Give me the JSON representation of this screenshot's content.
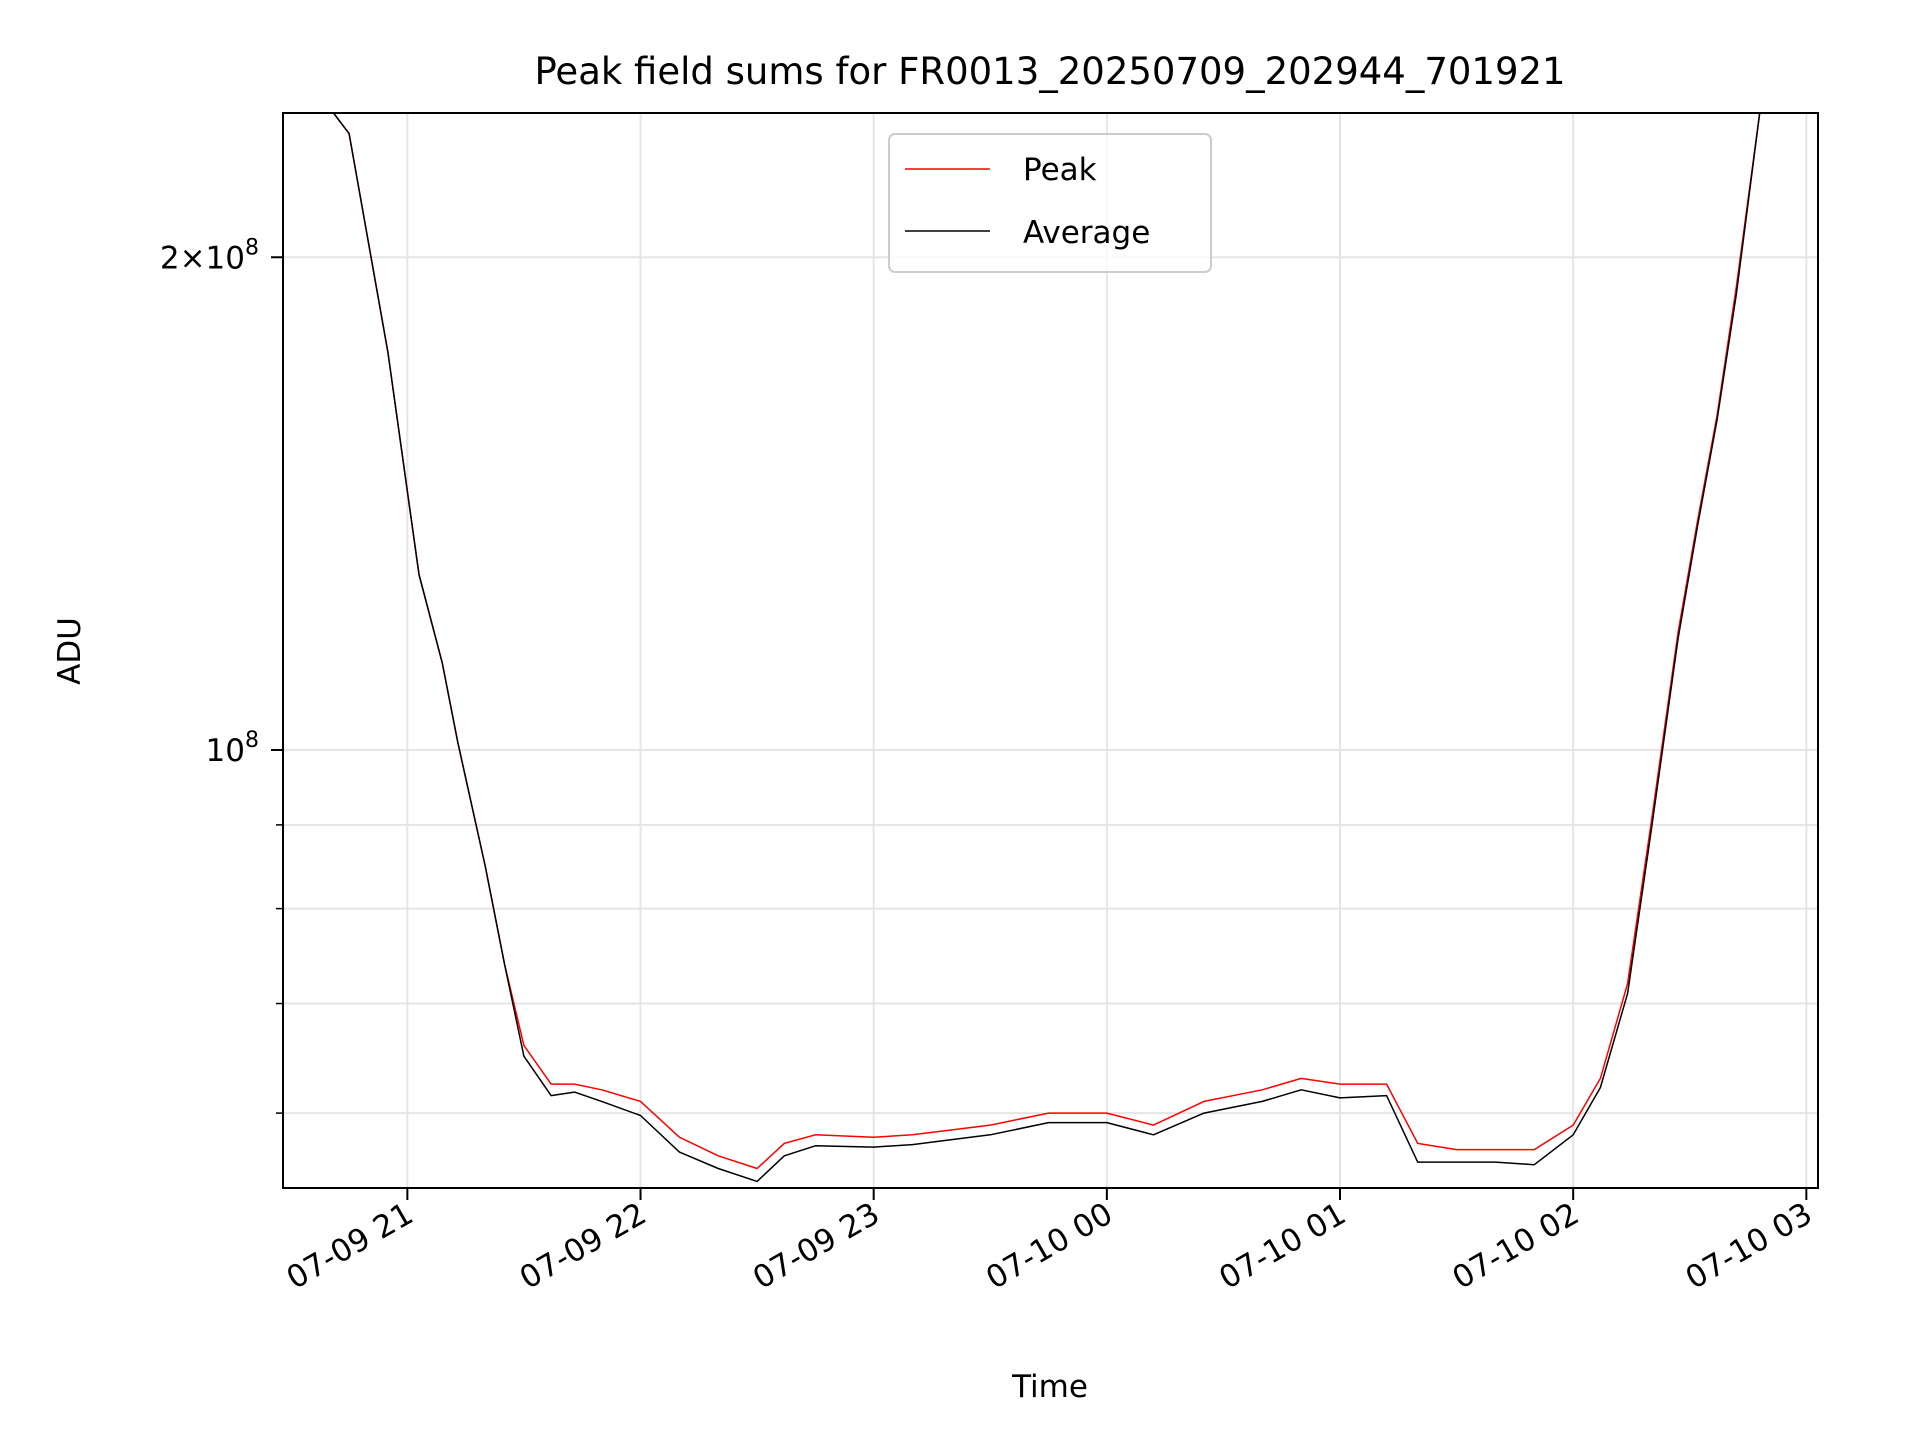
{
  "chart_data": {
    "type": "line",
    "title": "Peak field sums for FR0013_20250709_202944_701921",
    "xlabel": "Time",
    "ylabel": "ADU",
    "yscale": "log",
    "ylim": [
      54000000,
      245000000
    ],
    "xlim": [
      "2025-07-09 20:28",
      "2025-07-10 03:03"
    ],
    "grid": true,
    "legend_position": "top-center",
    "x_ticks": [
      "07-09 21",
      "07-09 22",
      "07-09 23",
      "07-10 00",
      "07-10 01",
      "07-10 02",
      "07-10 03"
    ],
    "y_ticks": [
      {
        "value": 100000000,
        "label": "10^8"
      },
      {
        "value": 200000000,
        "label": "2×10^8"
      }
    ],
    "y_minor_ticks": [
      60000000,
      70000000,
      80000000,
      90000000
    ],
    "series": [
      {
        "name": "Peak",
        "color": "#ff0000",
        "x": [
          "2025-07-09 20:29",
          "2025-07-09 20:41",
          "2025-07-09 20:45",
          "2025-07-09 20:55",
          "2025-07-09 21:03",
          "2025-07-09 21:09",
          "2025-07-09 21:13",
          "2025-07-09 21:20",
          "2025-07-09 21:25",
          "2025-07-09 21:30",
          "2025-07-09 21:37",
          "2025-07-09 21:43",
          "2025-07-09 21:50",
          "2025-07-09 22:00",
          "2025-07-09 22:10",
          "2025-07-09 22:20",
          "2025-07-09 22:30",
          "2025-07-09 22:37",
          "2025-07-09 22:45",
          "2025-07-09 23:00",
          "2025-07-09 23:10",
          "2025-07-09 23:30",
          "2025-07-09 23:45",
          "2025-07-10 00:00",
          "2025-07-10 00:12",
          "2025-07-10 00:25",
          "2025-07-10 00:40",
          "2025-07-10 00:50",
          "2025-07-10 01:00",
          "2025-07-10 01:12",
          "2025-07-10 01:20",
          "2025-07-10 01:30",
          "2025-07-10 01:40",
          "2025-07-10 01:50",
          "2025-07-10 02:00",
          "2025-07-10 02:07",
          "2025-07-10 02:14",
          "2025-07-10 02:20",
          "2025-07-10 02:27",
          "2025-07-10 02:32",
          "2025-07-10 02:37",
          "2025-07-10 02:42",
          "2025-07-10 02:48",
          "2025-07-10 03:02"
        ],
        "y": [
          245000000,
          245000000,
          238000000,
          175000000,
          128000000,
          113000000,
          101000000,
          85000000,
          74000000,
          66000000,
          62500000,
          62500000,
          62000000,
          61000000,
          58000000,
          56500000,
          55500000,
          57500000,
          58200000,
          58000000,
          58200000,
          59000000,
          60000000,
          60000000,
          59000000,
          61000000,
          62000000,
          63000000,
          62500000,
          62500000,
          57500000,
          57000000,
          57000000,
          57000000,
          59000000,
          63000000,
          72000000,
          90000000,
          118000000,
          138000000,
          160000000,
          192000000,
          245000000,
          245000000
        ]
      },
      {
        "name": "Average",
        "color": "#000000",
        "x": [
          "2025-07-09 20:29",
          "2025-07-09 20:41",
          "2025-07-09 20:45",
          "2025-07-09 20:55",
          "2025-07-09 21:03",
          "2025-07-09 21:09",
          "2025-07-09 21:13",
          "2025-07-09 21:20",
          "2025-07-09 21:25",
          "2025-07-09 21:30",
          "2025-07-09 21:37",
          "2025-07-09 21:43",
          "2025-07-09 21:50",
          "2025-07-09 22:00",
          "2025-07-09 22:10",
          "2025-07-09 22:20",
          "2025-07-09 22:30",
          "2025-07-09 22:37",
          "2025-07-09 22:45",
          "2025-07-09 23:00",
          "2025-07-09 23:10",
          "2025-07-09 23:30",
          "2025-07-09 23:45",
          "2025-07-10 00:00",
          "2025-07-10 00:12",
          "2025-07-10 00:25",
          "2025-07-10 00:40",
          "2025-07-10 00:50",
          "2025-07-10 01:00",
          "2025-07-10 01:12",
          "2025-07-10 01:20",
          "2025-07-10 01:30",
          "2025-07-10 01:40",
          "2025-07-10 01:50",
          "2025-07-10 02:00",
          "2025-07-10 02:07",
          "2025-07-10 02:14",
          "2025-07-10 02:20",
          "2025-07-10 02:27",
          "2025-07-10 02:32",
          "2025-07-10 02:37",
          "2025-07-10 02:42",
          "2025-07-10 02:48",
          "2025-07-10 03:02"
        ],
        "y": [
          245000000,
          245000000,
          238000000,
          175000000,
          128000000,
          113000000,
          101000000,
          85000000,
          74000000,
          65000000,
          61500000,
          61800000,
          61000000,
          59800000,
          56800000,
          55500000,
          54500000,
          56500000,
          57300000,
          57200000,
          57400000,
          58200000,
          59200000,
          59200000,
          58200000,
          60000000,
          61000000,
          62000000,
          61300000,
          61500000,
          56000000,
          56000000,
          56000000,
          55800000,
          58200000,
          62200000,
          71000000,
          89000000,
          117000000,
          137000000,
          159000000,
          190000000,
          245000000,
          245000000
        ]
      }
    ]
  }
}
